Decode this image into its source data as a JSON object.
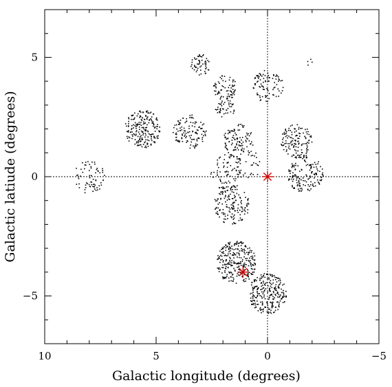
{
  "chart_data": {
    "type": "scatter",
    "xlabel": "Galactic longitude (degrees)",
    "ylabel": "Galactic latiude (degrees)",
    "xlim": [
      10,
      -5
    ],
    "ylim": [
      -7,
      7
    ],
    "x_ticks": [
      10,
      5,
      0,
      -5
    ],
    "y_ticks": [
      5,
      0,
      -5
    ],
    "x_tick_labels": [
      "10",
      "5",
      "0",
      "−5"
    ],
    "y_tick_labels": [
      "5",
      "0",
      "−5"
    ],
    "reference_lines": [
      {
        "orientation": "vertical",
        "value": 0,
        "style": "dotted"
      },
      {
        "orientation": "horizontal",
        "value": 0,
        "style": "dotted"
      }
    ],
    "fields": [
      {
        "center": [
          8.0,
          0.0
        ],
        "radius": 0.7,
        "count": 70
      },
      {
        "center": [
          5.6,
          2.0
        ],
        "radius": 0.8,
        "count": 210
      },
      {
        "center": [
          3.5,
          1.9
        ],
        "radius": 0.75,
        "count": 120
      },
      {
        "center": [
          3.0,
          4.7
        ],
        "radius": 0.45,
        "count": 55
      },
      {
        "center": [
          1.9,
          3.7
        ],
        "radius": 0.55,
        "count": 70
      },
      {
        "center": [
          1.9,
          2.9
        ],
        "radius": 0.45,
        "count": 45
      },
      {
        "center": [
          1.3,
          1.5
        ],
        "radius": 0.7,
        "count": 110
      },
      {
        "center": [
          1.8,
          0.2
        ],
        "radius": 0.8,
        "count": 90
      },
      {
        "center": [
          1.6,
          -1.2
        ],
        "radius": 0.8,
        "count": 150
      },
      {
        "center": [
          0.8,
          0.5
        ],
        "radius": 0.6,
        "count": 30
      },
      {
        "center": [
          0.0,
          3.8
        ],
        "radius": 0.7,
        "count": 90
      },
      {
        "center": [
          -1.3,
          1.5
        ],
        "radius": 0.7,
        "count": 130
      },
      {
        "center": [
          -1.7,
          0.1
        ],
        "radius": 0.8,
        "count": 150
      },
      {
        "center": [
          1.4,
          -3.6
        ],
        "radius": 0.9,
        "count": 280
      },
      {
        "center": [
          0.0,
          -4.9
        ],
        "radius": 0.85,
        "count": 260
      },
      {
        "center": [
          -1.9,
          4.8
        ],
        "radius": 0.15,
        "count": 4
      }
    ],
    "markers": [
      {
        "x": 0.0,
        "y": 0.0,
        "symbol": "asterisk",
        "color": "#cc0000"
      },
      {
        "x": 1.1,
        "y": -4.0,
        "symbol": "asterisk",
        "color": "#cc0000"
      }
    ],
    "point_color": "#000000",
    "grid": false
  }
}
